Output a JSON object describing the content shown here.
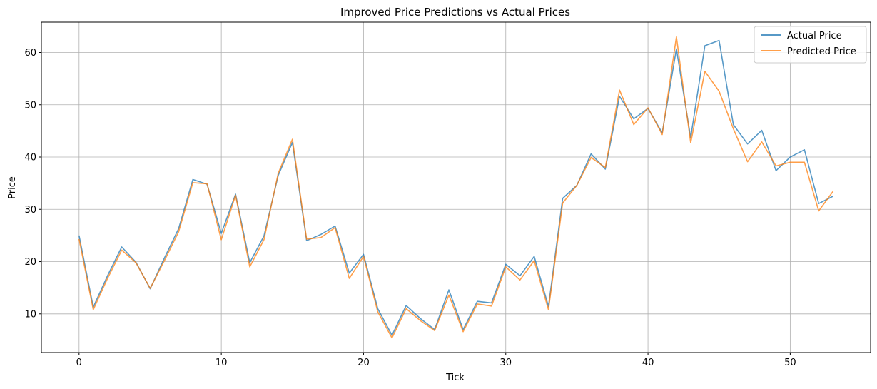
{
  "chart_data": {
    "type": "line",
    "title": "Improved Price Predictions vs Actual Prices",
    "xlabel": "Tick",
    "ylabel": "Price",
    "xlim": [
      -2.65,
      55.65
    ],
    "ylim": [
      2.6,
      65.8
    ],
    "xticks": [
      0,
      10,
      20,
      30,
      40,
      50
    ],
    "yticks": [
      10,
      20,
      30,
      40,
      50,
      60
    ],
    "grid": true,
    "legend_position": "top-right",
    "x": [
      0,
      1,
      2,
      3,
      4,
      5,
      6,
      7,
      8,
      9,
      10,
      11,
      12,
      13,
      14,
      15,
      16,
      17,
      18,
      19,
      20,
      21,
      22,
      23,
      24,
      25,
      26,
      27,
      28,
      29,
      30,
      31,
      32,
      33,
      34,
      35,
      36,
      37,
      38,
      39,
      40,
      41,
      42,
      43,
      44,
      45,
      46,
      47,
      48,
      49,
      50,
      51,
      52,
      53
    ],
    "series": [
      {
        "name": "Actual Price",
        "color": "#1f77b4",
        "values": [
          25.0,
          11.3,
          17.3,
          22.8,
          19.9,
          14.8,
          20.7,
          26.3,
          35.7,
          34.8,
          25.4,
          32.9,
          19.8,
          24.9,
          36.5,
          42.8,
          24.0,
          25.2,
          26.8,
          17.8,
          21.4,
          11.0,
          5.9,
          11.6,
          9.1,
          7.0,
          14.6,
          7.0,
          12.4,
          12.1,
          19.5,
          17.3,
          21.0,
          11.4,
          32.1,
          34.6,
          40.6,
          37.7,
          51.6,
          47.3,
          49.3,
          44.6,
          60.7,
          43.7,
          61.3,
          62.3,
          46.2,
          42.5,
          45.1,
          37.4,
          40.0,
          41.4,
          31.1,
          32.5
        ]
      },
      {
        "name": "Predicted Price",
        "color": "#ff7f0e",
        "values": [
          24.3,
          10.8,
          16.8,
          22.2,
          19.8,
          14.9,
          20.2,
          25.7,
          35.1,
          34.9,
          24.2,
          32.7,
          19.0,
          24.2,
          36.9,
          43.4,
          24.3,
          24.6,
          26.5,
          16.8,
          21.0,
          10.4,
          5.4,
          11.0,
          8.7,
          6.8,
          13.6,
          6.6,
          11.9,
          11.5,
          19.0,
          16.5,
          20.2,
          10.8,
          31.2,
          34.6,
          39.9,
          38.0,
          52.8,
          46.2,
          49.4,
          44.3,
          63.0,
          42.7,
          56.4,
          52.6,
          45.4,
          39.1,
          42.9,
          38.3,
          39.0,
          39.0,
          29.7,
          33.4
        ]
      }
    ]
  }
}
